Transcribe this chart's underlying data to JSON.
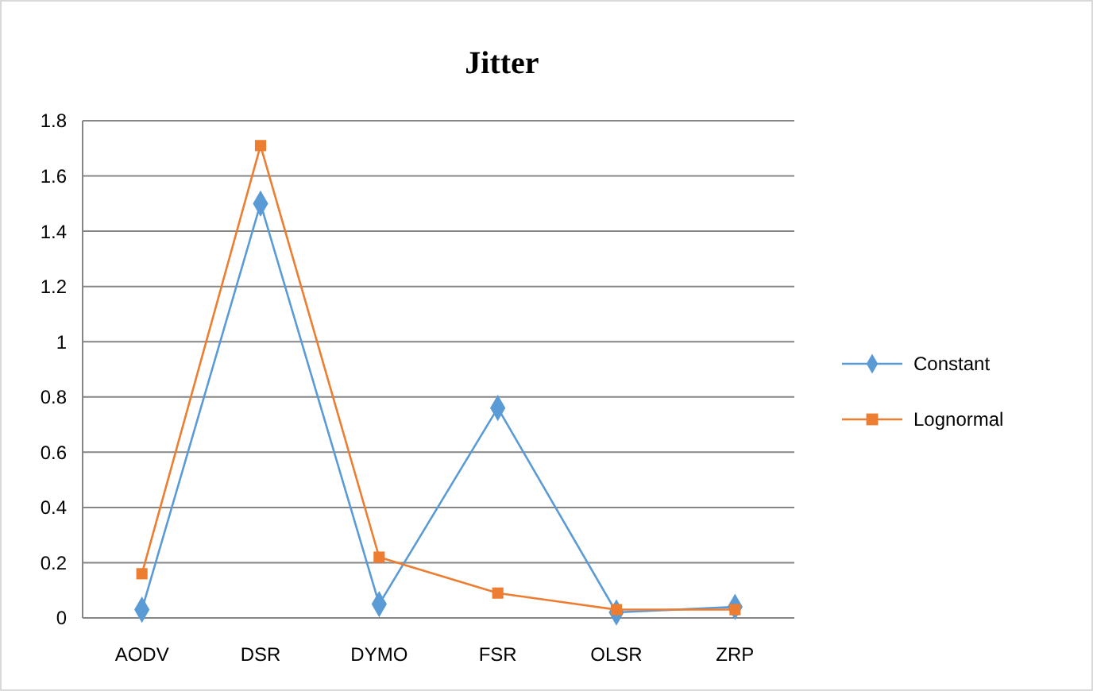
{
  "chart_data": {
    "type": "line",
    "title": "Jitter",
    "categories": [
      "AODV",
      "DSR",
      "DYMO",
      "FSR",
      "OLSR",
      "ZRP"
    ],
    "series": [
      {
        "name": "Constant",
        "color": "#5b9bd5",
        "marker": "diamond",
        "values": [
          0.03,
          1.5,
          0.05,
          0.76,
          0.02,
          0.04
        ]
      },
      {
        "name": "Lognormal",
        "color": "#ed7d31",
        "marker": "square",
        "values": [
          0.16,
          1.71,
          0.22,
          0.09,
          0.03,
          0.03
        ]
      }
    ],
    "ylim": [
      0,
      1.8
    ],
    "yticks": [
      0,
      0.2,
      0.4,
      0.6,
      0.8,
      1,
      1.2,
      1.4,
      1.6,
      1.8
    ],
    "grid": "y",
    "legend": "right"
  }
}
